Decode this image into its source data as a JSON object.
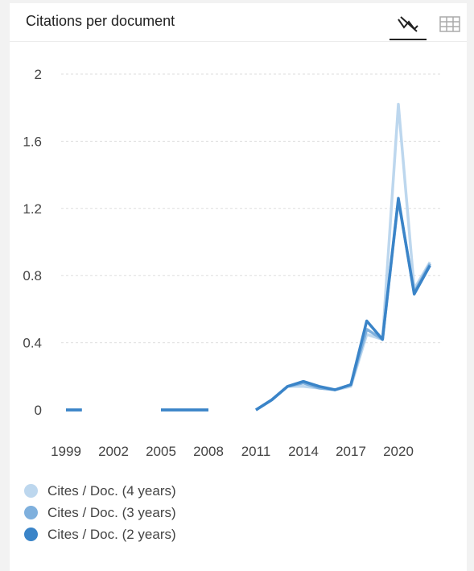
{
  "title": "Citations per document",
  "tools": {
    "line_icon": "line-chart-icon",
    "table_icon": "table-icon"
  },
  "colors": {
    "series4": "#bdd7ee",
    "series3": "#7fb0dd",
    "series2": "#3a84c8",
    "grid": "#dddddd",
    "text": "#444444"
  },
  "chart_data": {
    "type": "line",
    "title": "Citations per document",
    "xlabel": "",
    "ylabel": "",
    "ylim": [
      0,
      2
    ],
    "yticks": [
      "0",
      "0.4",
      "0.8",
      "1.2",
      "1.6",
      "2"
    ],
    "xticks": [
      "1999",
      "2002",
      "2005",
      "2008",
      "2011",
      "2014",
      "2017",
      "2020"
    ],
    "x": [
      1999,
      2000,
      2001,
      2002,
      2003,
      2004,
      2005,
      2006,
      2007,
      2008,
      2009,
      2010,
      2011,
      2012,
      2013,
      2014,
      2015,
      2016,
      2017,
      2018,
      2019,
      2020,
      2021,
      2022
    ],
    "series": [
      {
        "name": "Cites / Doc. (4 years)",
        "color": "#bdd7ee",
        "values": [
          0,
          0,
          null,
          null,
          null,
          null,
          0,
          0,
          0,
          0,
          null,
          null,
          0,
          0.06,
          0.14,
          0.14,
          0.13,
          0.12,
          0.14,
          0.45,
          0.42,
          1.82,
          0.72,
          0.88
        ]
      },
      {
        "name": "Cites / Doc. (3 years)",
        "color": "#7fb0dd",
        "values": [
          0,
          0,
          null,
          null,
          null,
          null,
          0,
          0,
          0,
          0,
          null,
          null,
          0,
          0.06,
          0.14,
          0.16,
          0.13,
          0.12,
          0.15,
          0.48,
          0.42,
          1.25,
          0.7,
          0.87
        ]
      },
      {
        "name": "Cites / Doc. (2 years)",
        "color": "#3a84c8",
        "values": [
          0,
          0,
          null,
          null,
          null,
          null,
          0,
          0,
          0,
          0,
          null,
          null,
          0,
          0.06,
          0.14,
          0.17,
          0.14,
          0.12,
          0.15,
          0.53,
          0.42,
          1.26,
          0.69,
          0.86
        ]
      }
    ],
    "grid": true,
    "legend_position": "bottom-left"
  }
}
